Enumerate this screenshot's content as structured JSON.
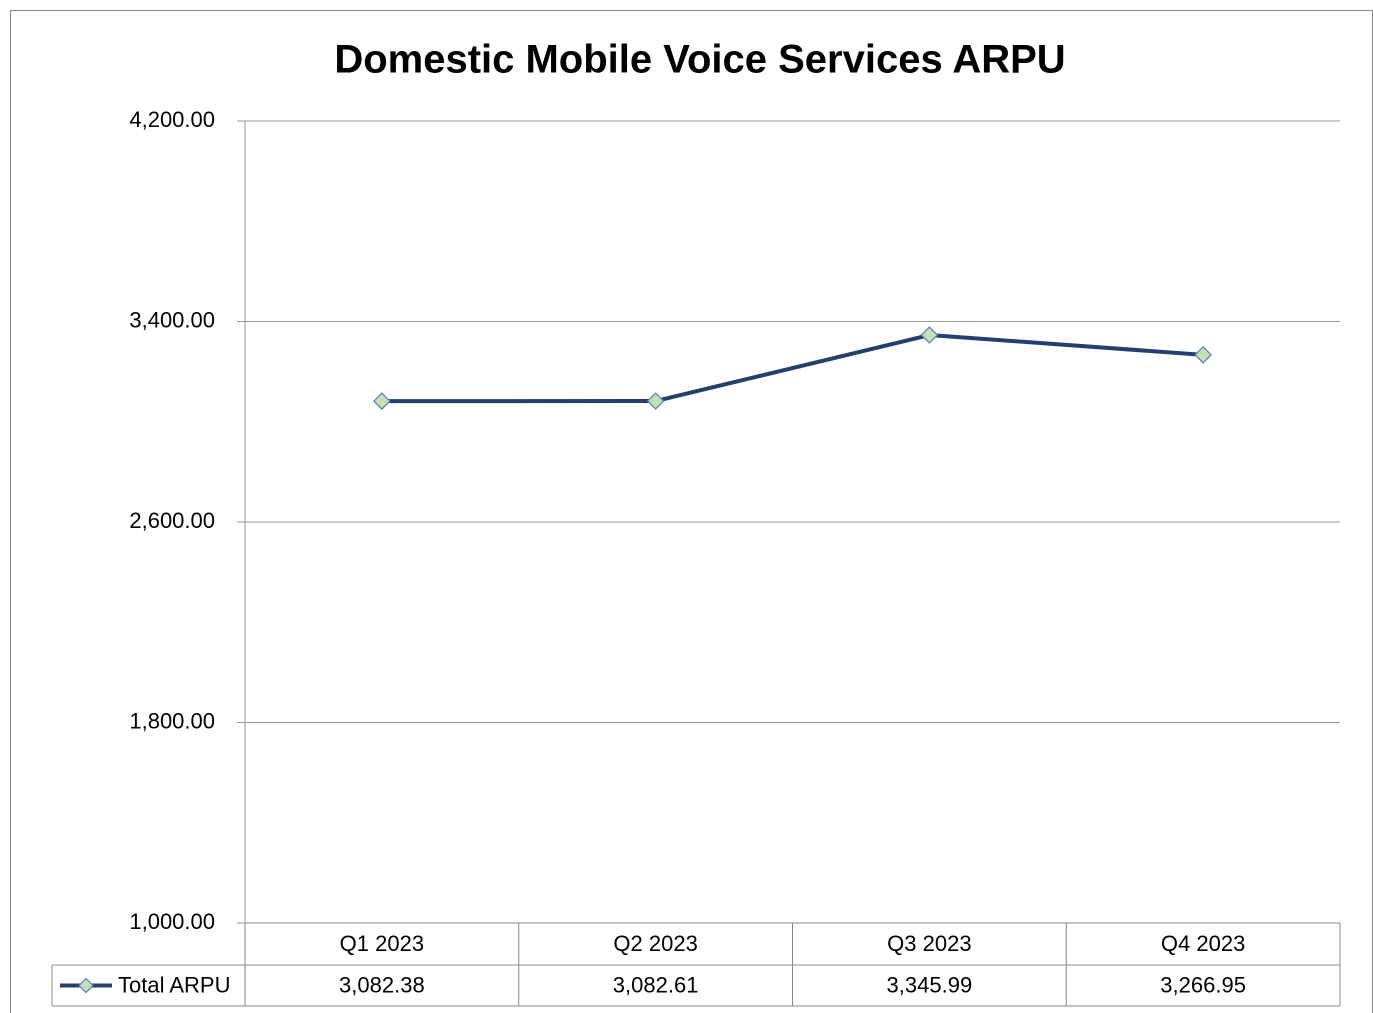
{
  "chart_data": {
    "type": "line",
    "title": "Domestic Mobile Voice Services ARPU",
    "categories": [
      "Q1 2023",
      "Q2 2023",
      "Q3 2023",
      "Q4 2023"
    ],
    "series": [
      {
        "name": "Total ARPU",
        "color": "#243f6e",
        "marker_color": "#c6e0b4",
        "values": [
          3082.38,
          3082.61,
          3345.99,
          3266.95
        ],
        "value_labels": [
          "3,082.38",
          "3,082.61",
          "3,345.99",
          "3,266.95"
        ]
      }
    ],
    "ylim": [
      1000,
      4200
    ],
    "yticks": [
      {
        "value": 1000,
        "label": "1,000.00"
      },
      {
        "value": 1800,
        "label": "1,800.00"
      },
      {
        "value": 2600,
        "label": "2,600.00"
      },
      {
        "value": 3400,
        "label": "3,400.00"
      },
      {
        "value": 4200,
        "label": "4,200.00"
      }
    ],
    "grid": true,
    "data_table": true
  }
}
